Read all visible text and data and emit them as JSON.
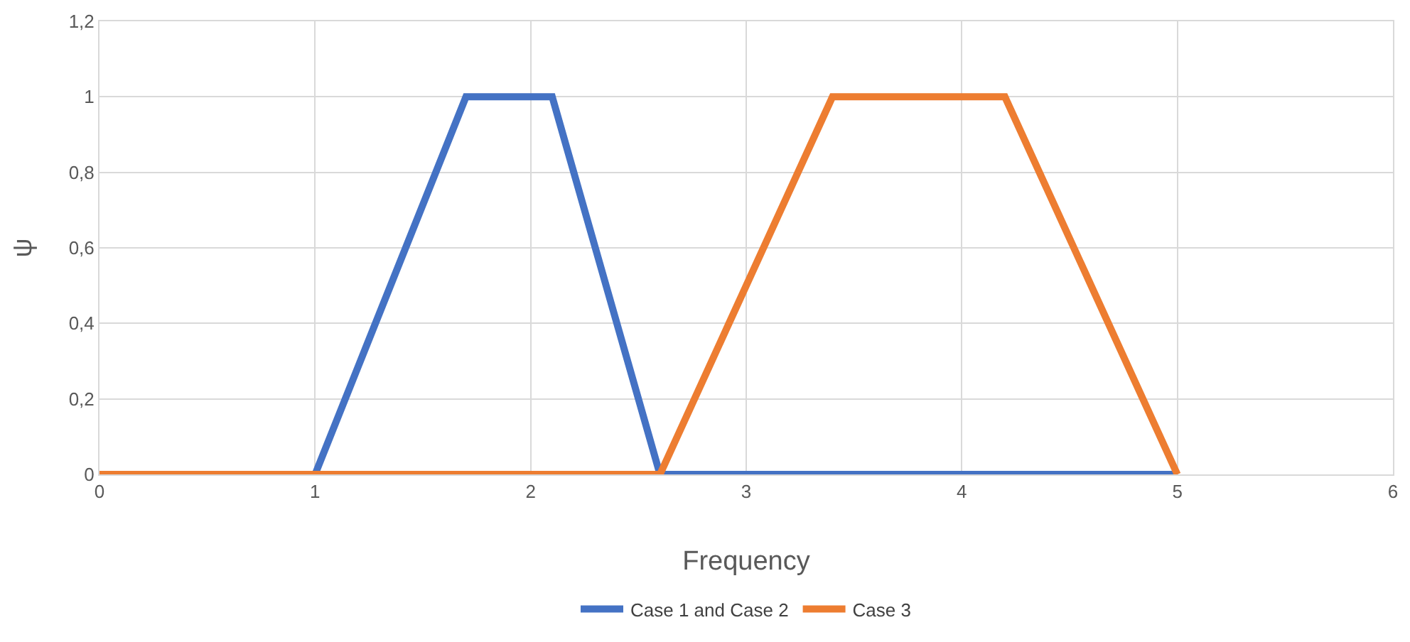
{
  "chart_data": {
    "type": "line",
    "xlabel": "Frequency",
    "ylabel": "ψ",
    "series": [
      {
        "name": "Case 1 and Case 2",
        "color": "#4472c4",
        "x": [
          0,
          1,
          1.7,
          2.1,
          2.6,
          5
        ],
        "values": [
          0,
          0,
          1,
          1,
          0,
          0
        ]
      },
      {
        "name": "Case 3",
        "color": "#ed7d31",
        "x": [
          0,
          2.6,
          3.4,
          4.2,
          5
        ],
        "values": [
          0,
          0,
          1,
          1,
          0
        ]
      }
    ],
    "xlim": [
      0,
      6
    ],
    "xticks": [
      0,
      1,
      2,
      3,
      4,
      5,
      6
    ],
    "ylim": [
      0,
      1.2
    ],
    "yticks": [
      0,
      {
        "value": 0.2,
        "label": "0,2"
      },
      {
        "value": 0.4,
        "label": "0,4"
      },
      {
        "value": 0.6,
        "label": "0,6"
      },
      {
        "value": 0.8,
        "label": "0,8"
      },
      1,
      {
        "value": 1.2,
        "label": "1,2"
      }
    ],
    "grid": true,
    "legend": "bottom",
    "marker": "none",
    "line_style": "solid"
  }
}
